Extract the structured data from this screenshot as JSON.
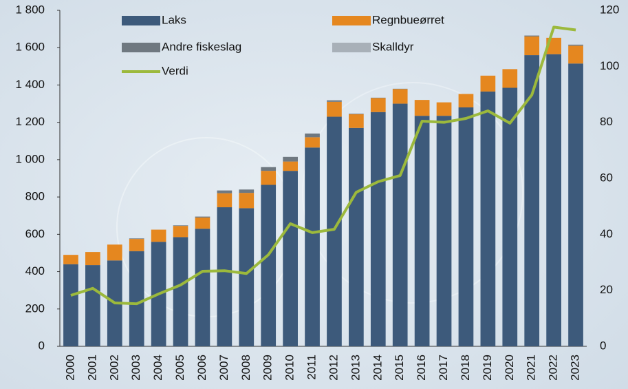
{
  "chart_data": {
    "type": "bar",
    "categories": [
      "2000",
      "2001",
      "2002",
      "2003",
      "2004",
      "2005",
      "2006",
      "2007",
      "2008",
      "2009",
      "2010",
      "2011",
      "2012",
      "2013",
      "2014",
      "2015",
      "2016",
      "2017",
      "2018",
      "2019",
      "2020",
      "2021",
      "2022",
      "2023"
    ],
    "series": [
      {
        "name": "Laks",
        "color": "#3d5a7b",
        "values": [
          440,
          435,
          460,
          510,
          560,
          585,
          630,
          745,
          740,
          865,
          940,
          1065,
          1230,
          1170,
          1255,
          1300,
          1235,
          1235,
          1280,
          1365,
          1385,
          1560,
          1565,
          1515
        ]
      },
      {
        "name": "Regnbueørret",
        "color": "#e5871f",
        "values": [
          50,
          70,
          85,
          65,
          65,
          60,
          60,
          75,
          82,
          75,
          50,
          55,
          80,
          73,
          75,
          78,
          85,
          72,
          72,
          85,
          100,
          100,
          88,
          95
        ]
      },
      {
        "name": "Andre fiskeslag",
        "color": "#6f7880",
        "values": [
          0,
          0,
          0,
          3,
          0,
          3,
          5,
          15,
          18,
          20,
          25,
          20,
          8,
          3,
          2,
          2,
          0,
          0,
          0,
          0,
          0,
          5,
          0,
          5
        ]
      },
      {
        "name": "Skalldyr",
        "color": "#a8b0b8",
        "values": [
          0,
          0,
          0,
          0,
          0,
          0,
          0,
          0,
          0,
          0,
          0,
          0,
          0,
          0,
          0,
          0,
          0,
          0,
          0,
          0,
          0,
          0,
          0,
          2
        ]
      },
      {
        "name": "Verdi",
        "color": "#9cb93c",
        "type": "line",
        "axis": "y2",
        "values": [
          18.2,
          20.7,
          15.5,
          15.2,
          18.7,
          21.9,
          26.8,
          27,
          26,
          32.7,
          43.8,
          40.6,
          41.8,
          55,
          58.8,
          61,
          80.4,
          80,
          81.4,
          84.1,
          79.7,
          89.8,
          114,
          113
        ]
      }
    ],
    "ylim": [
      0,
      1800
    ],
    "yticks": [
      0,
      200,
      400,
      600,
      800,
      {
        "value": 1000,
        "label": "1 000"
      },
      {
        "value": 1200,
        "label": "1 200"
      },
      {
        "value": 1400,
        "label": "1 400"
      },
      {
        "value": 1600,
        "label": "1 600"
      },
      {
        "value": 1800,
        "label": "1 800"
      }
    ],
    "y2lim": [
      0,
      120
    ],
    "y2ticks": [
      0,
      20,
      40,
      60,
      80,
      100,
      120
    ],
    "stacked": true
  }
}
